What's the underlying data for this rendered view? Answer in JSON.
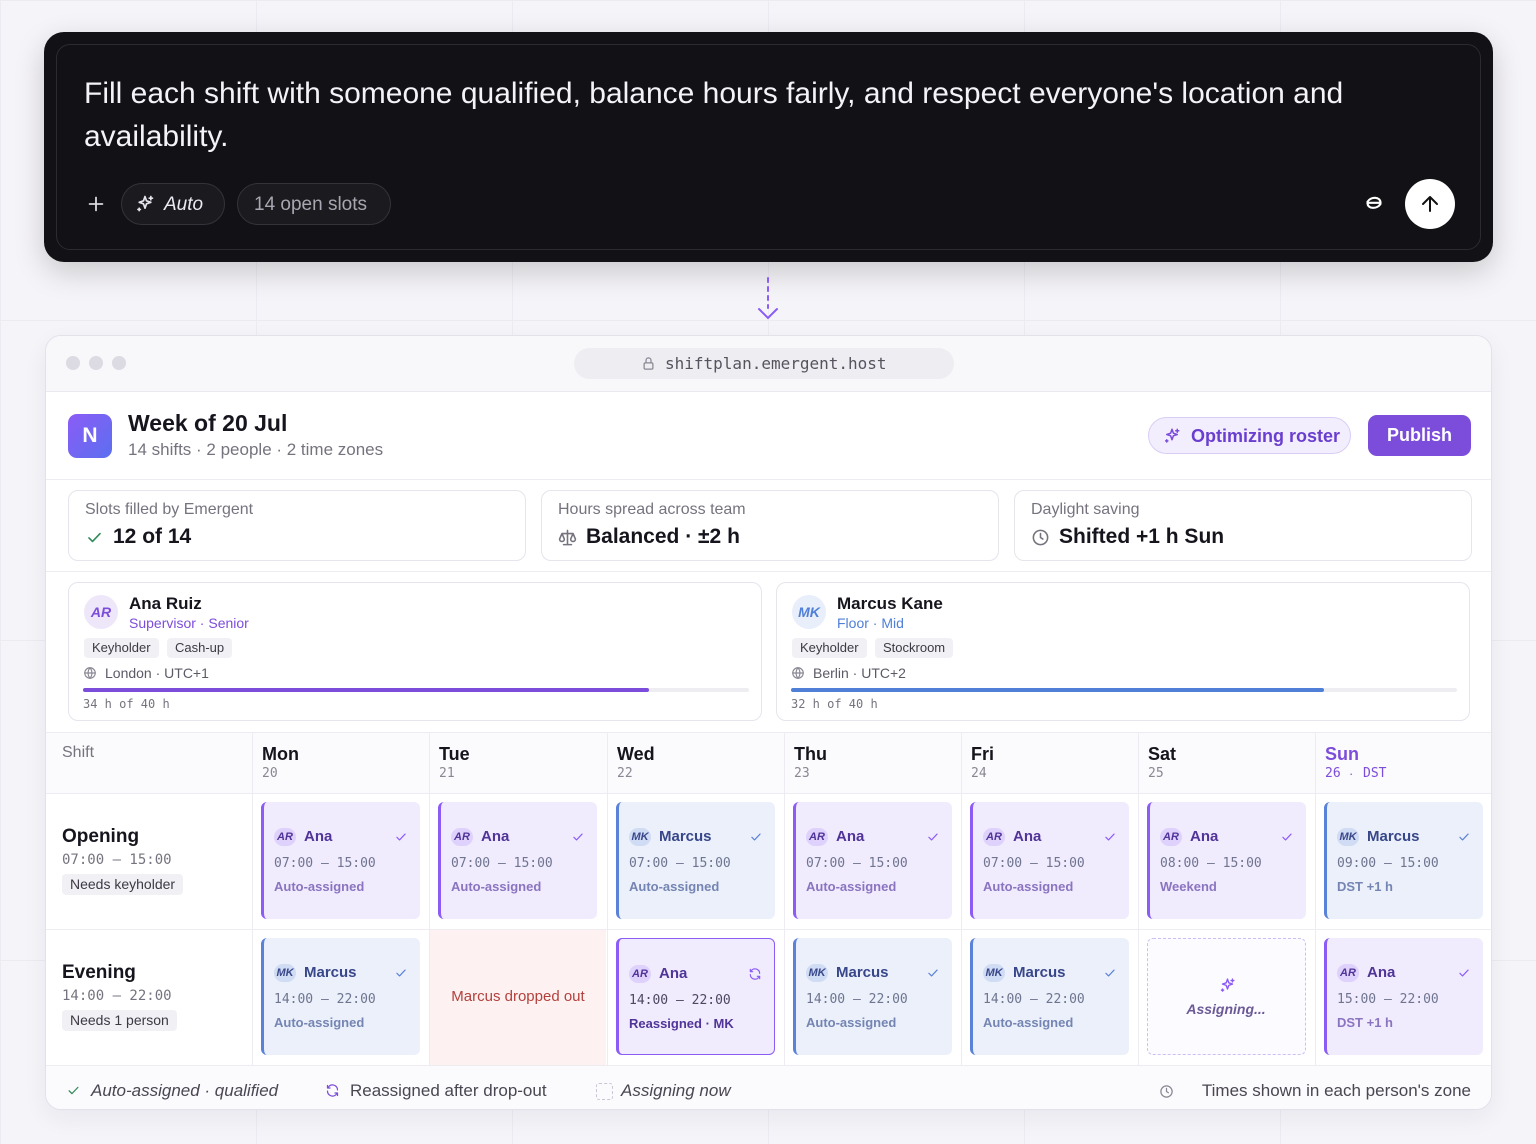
{
  "prompt": {
    "text": "Fill each shift with someone qualified, balance hours fairly, and respect everyone's location and availability.",
    "mode": "Auto",
    "slots": "14 open slots"
  },
  "browser": {
    "url": "shiftplan.emergent.host"
  },
  "header": {
    "logo": "N",
    "title": "Week of 20 Jul",
    "subtitle": "14 shifts · 2 people · 2 time zones",
    "status": "Optimizing roster",
    "publish": "Publish"
  },
  "stats": [
    {
      "label": "Slots filled by Emergent",
      "value": "12 of 14"
    },
    {
      "label": "Hours spread across team",
      "value": "Balanced · ±2 h"
    },
    {
      "label": "Daylight saving",
      "value": "Shifted +1 h Sun"
    }
  ],
  "people": [
    {
      "initials": "AR",
      "name": "Ana Ruiz",
      "role": "Supervisor · Senior",
      "tags": [
        "Keyholder",
        "Cash-up"
      ],
      "location": "London · UTC+1",
      "hours": 34,
      "capacity": 40,
      "hours_label": "34 h of 40 h",
      "color": "#7c4ddb"
    },
    {
      "initials": "MK",
      "name": "Marcus Kane",
      "role": "Floor · Mid",
      "tags": [
        "Keyholder",
        "Stockroom"
      ],
      "location": "Berlin · UTC+2",
      "hours": 32,
      "capacity": 40,
      "hours_label": "32 h of 40 h",
      "color": "#4f7fd6"
    }
  ],
  "schedule": {
    "corner": "Shift",
    "days": [
      {
        "name": "Mon",
        "date": "20"
      },
      {
        "name": "Tue",
        "date": "21"
      },
      {
        "name": "Wed",
        "date": "22"
      },
      {
        "name": "Thu",
        "date": "23"
      },
      {
        "name": "Fri",
        "date": "24"
      },
      {
        "name": "Sat",
        "date": "25"
      },
      {
        "name": "Sun",
        "date": "26",
        "note": "DST"
      }
    ],
    "rows": [
      {
        "name": "Opening",
        "time": "07:00 – 15:00",
        "need": "Needs keyholder",
        "cells": [
          {
            "state": "assigned",
            "initials": "AR",
            "name": "Ana",
            "time": "07:00 – 15:00",
            "status": "Auto-assigned",
            "color": "#8b5cf6"
          },
          {
            "state": "assigned",
            "initials": "AR",
            "name": "Ana",
            "time": "07:00 – 15:00",
            "status": "Auto-assigned",
            "color": "#8b5cf6"
          },
          {
            "state": "assigned",
            "initials": "MK",
            "name": "Marcus",
            "time": "07:00 – 15:00",
            "status": "Auto-assigned",
            "color": "#5b82d9"
          },
          {
            "state": "assigned",
            "initials": "AR",
            "name": "Ana",
            "time": "07:00 – 15:00",
            "status": "Auto-assigned",
            "color": "#8b5cf6"
          },
          {
            "state": "assigned",
            "initials": "AR",
            "name": "Ana",
            "time": "07:00 – 15:00",
            "status": "Auto-assigned",
            "color": "#8b5cf6"
          },
          {
            "state": "assigned",
            "initials": "AR",
            "name": "Ana",
            "time": "08:00 – 15:00",
            "status": "Weekend",
            "color": "#8b5cf6"
          },
          {
            "state": "assigned",
            "initials": "MK",
            "name": "Marcus",
            "time": "09:00 – 15:00",
            "status": "DST +1 h",
            "color": "#5b82d9"
          }
        ]
      },
      {
        "name": "Evening",
        "time": "14:00 – 22:00",
        "need": "Needs 1 person",
        "cells": [
          {
            "state": "assigned",
            "initials": "MK",
            "name": "Marcus",
            "time": "14:00 – 22:00",
            "status": "Auto-assigned",
            "color": "#5b82d9"
          },
          {
            "state": "dropped",
            "text": "Marcus dropped out"
          },
          {
            "state": "reassigned",
            "initials": "AR",
            "name": "Ana",
            "time": "14:00 – 22:00",
            "status": "Reassigned · MK",
            "color": "#8b5cf6"
          },
          {
            "state": "assigned",
            "initials": "MK",
            "name": "Marcus",
            "time": "14:00 – 22:00",
            "status": "Auto-assigned",
            "color": "#5b82d9"
          },
          {
            "state": "assigned",
            "initials": "MK",
            "name": "Marcus",
            "time": "14:00 – 22:00",
            "status": "Auto-assigned",
            "color": "#5b82d9"
          },
          {
            "state": "assigning",
            "text": "Assigning..."
          },
          {
            "state": "assigned",
            "initials": "AR",
            "name": "Ana",
            "time": "15:00 – 22:00",
            "status": "DST +1 h",
            "color": "#8b5cf6"
          }
        ]
      }
    ]
  },
  "legend": {
    "items": [
      "Auto-assigned · qualified",
      "Reassigned after drop-out",
      "Assigning now"
    ],
    "note": "Times shown in each person's zone"
  }
}
